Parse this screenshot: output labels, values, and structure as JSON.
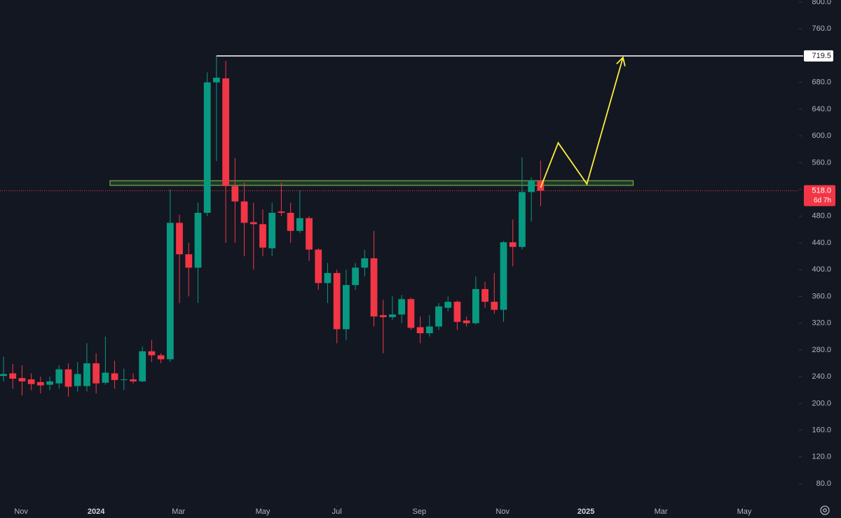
{
  "chart_data": {
    "type": "candlestick",
    "colors": {
      "up": "#089981",
      "down": "#f23645"
    },
    "x": [
      0,
      1,
      2,
      3,
      4,
      5,
      6,
      7,
      8,
      9,
      10,
      11,
      12,
      13,
      14,
      15,
      16,
      17,
      18,
      19,
      20,
      21,
      22,
      23,
      24,
      25,
      26,
      27,
      28,
      29,
      30,
      31,
      32,
      33,
      34,
      35,
      36,
      37,
      38,
      39,
      40,
      41,
      42,
      43,
      44,
      45,
      46,
      47,
      48,
      49,
      50,
      51,
      52,
      53,
      54,
      55,
      56,
      57,
      58
    ],
    "open": [
      241,
      245,
      238,
      236,
      232,
      228,
      230,
      251,
      226,
      226,
      260,
      231,
      245,
      235,
      236,
      233,
      278,
      272,
      266,
      470,
      423,
      403,
      485,
      680,
      686,
      525,
      502,
      471,
      468,
      432,
      487,
      485,
      458,
      477,
      430,
      380,
      395,
      311,
      377,
      403,
      417,
      332,
      329,
      333,
      356,
      314,
      305,
      315,
      343,
      352,
      324,
      320,
      371,
      352,
      340,
      441,
      434,
      516,
      533
    ],
    "high": [
      270,
      259,
      257,
      245,
      240,
      240,
      257,
      260,
      262,
      290,
      275,
      300,
      264,
      252,
      245,
      285,
      295,
      275,
      520,
      482,
      440,
      500,
      695,
      720,
      712,
      567,
      530,
      500,
      490,
      500,
      530,
      500,
      518,
      480,
      432,
      410,
      400,
      400,
      410,
      430,
      458,
      355,
      360,
      362,
      358,
      330,
      332,
      350,
      360,
      354,
      330,
      390,
      382,
      395,
      443,
      475,
      568,
      538,
      563
    ],
    "low": [
      233,
      222,
      212,
      220,
      215,
      220,
      222,
      210,
      218,
      218,
      215,
      228,
      222,
      220,
      230,
      232,
      262,
      260,
      262,
      350,
      360,
      350,
      480,
      562,
      440,
      440,
      420,
      400,
      420,
      420,
      480,
      440,
      455,
      413,
      370,
      350,
      290,
      295,
      370,
      390,
      315,
      275,
      325,
      320,
      310,
      290,
      300,
      310,
      338,
      310,
      315,
      318,
      343,
      334,
      322,
      405,
      430,
      472,
      495
    ],
    "close": [
      244,
      237,
      233,
      229,
      227,
      233,
      251,
      225,
      244,
      260,
      230,
      246,
      235,
      236,
      233,
      278,
      272,
      266,
      470,
      423,
      403,
      485,
      680,
      687,
      525,
      502,
      470,
      468,
      433,
      485,
      485,
      458,
      477,
      430,
      380,
      395,
      311,
      377,
      403,
      417,
      330,
      329,
      333,
      356,
      313,
      305,
      315,
      345,
      352,
      322,
      320,
      371,
      352,
      340,
      441,
      434,
      516,
      533,
      518
    ],
    "xlim": [
      -0.38,
      85.9
    ],
    "xticks": [
      {
        "value": 1.9,
        "label": "Nov"
      },
      {
        "value": 10.0,
        "label": "2024"
      },
      {
        "value": 18.9,
        "label": "Mar"
      },
      {
        "value": 28.0,
        "label": "May"
      },
      {
        "value": 36.0,
        "label": "Jul"
      },
      {
        "value": 44.9,
        "label": "Sep"
      },
      {
        "value": 53.9,
        "label": "Nov"
      },
      {
        "value": 62.9,
        "label": "2025"
      },
      {
        "value": 71.0,
        "label": "Mar"
      },
      {
        "value": 80.0,
        "label": "May"
      }
    ],
    "ylim": [
      50,
      800
    ],
    "yticks": [
      {
        "value": 80,
        "label": "80.0"
      },
      {
        "value": 120,
        "label": "120.0"
      },
      {
        "value": 160,
        "label": "160.0"
      },
      {
        "value": 200,
        "label": "200.0"
      },
      {
        "value": 240,
        "label": "240.0"
      },
      {
        "value": 280,
        "label": "280.0"
      },
      {
        "value": 320,
        "label": "320.0"
      },
      {
        "value": 360,
        "label": "360.0"
      },
      {
        "value": 400,
        "label": "400.0"
      },
      {
        "value": 440,
        "label": "440.0"
      },
      {
        "value": 480,
        "label": "480.0"
      },
      {
        "value": 520,
        "label": "520.0"
      },
      {
        "value": 560,
        "label": "560.0"
      },
      {
        "value": 600,
        "label": "600.0"
      },
      {
        "value": 640,
        "label": "640.0"
      },
      {
        "value": 680,
        "label": "680.0"
      },
      {
        "value": 720,
        "label": "720.0"
      },
      {
        "value": 760,
        "label": "760.0"
      },
      {
        "value": 800,
        "label": "800.0"
      }
    ],
    "last_price": {
      "value": 518.0,
      "label": "518.0",
      "countdown": "6d 7h"
    },
    "resistance": {
      "value": 719.5,
      "label": "719.5",
      "x_start": 23
    },
    "zone": {
      "x": [
        12,
        68
      ],
      "y": [
        526,
        533
      ]
    },
    "projection": {
      "x": [
        58,
        59.9,
        63,
        66.9
      ],
      "y": [
        522.7,
        589.6,
        528,
        717.3
      ]
    }
  }
}
